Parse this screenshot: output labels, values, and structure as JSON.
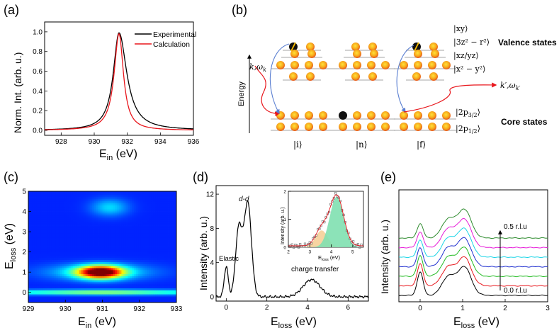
{
  "figure": {
    "panels": {
      "a": {
        "label": "(a)",
        "xlabel_main": "E",
        "xlabel_sub": "in",
        "xlabel_unit": " (eV)",
        "ylabel": "Norm. Int. (arb. u.)",
        "legend": [
          "Experimental",
          "Calculation"
        ],
        "colors": {
          "experimental": "#000000",
          "calculation": "#e8151b"
        }
      },
      "b": {
        "label": "(b)",
        "energy_label": "Energy",
        "in_photon": "k,ω",
        "in_photon_sub": "k",
        "out_photon": "k′,ω",
        "out_photon_sub": "k′",
        "valence_title": "Valence states",
        "core_title": "Core states",
        "orbitals": [
          "|xy⟩",
          "|3z² − r²⟩",
          "|xz/yz⟩",
          "|x² − y²⟩"
        ],
        "core_orbitals": [
          "|2p",
          "3/2",
          "⟩",
          "|2p",
          "1/2",
          "⟩"
        ],
        "states": [
          "|i⟩",
          "|n⟩",
          "|f⟩"
        ]
      },
      "c": {
        "label": "(c)",
        "xlabel_main": "E",
        "xlabel_sub": "in",
        "xlabel_unit": " (eV)",
        "ylabel_main": "E",
        "ylabel_sub": "loss",
        "ylabel_unit": " (eV)"
      },
      "d": {
        "label": "(d)",
        "ylabel": "Intensity (arb. u.)",
        "xlabel_main": "E",
        "xlabel_sub": "loss",
        "xlabel_unit": " (eV)",
        "annotations": {
          "elastic": "Elastic",
          "dd": "d-d",
          "ct": "charge transfer"
        },
        "inset": {
          "ylabel": "Intensity (arb. u.)",
          "xlabel_main": "E",
          "xlabel_sub": "loss",
          "xlabel_unit": " (eV)"
        }
      },
      "e": {
        "label": "(e)",
        "ylabel": "Intensity (arb. u.)",
        "xlabel_main": "E",
        "xlabel_sub": "loss",
        "xlabel_unit": " (eV)",
        "q_start": "0.0 r.l.u",
        "q_end": "0.5 r.l.u",
        "colors": [
          "#000000",
          "#e8151b",
          "#22bb22",
          "#1f2fcf",
          "#18d4e6",
          "#e61bd8",
          "#2e8b2e"
        ]
      }
    }
  },
  "chart_data": [
    {
      "panel": "a",
      "type": "line",
      "xlim": [
        927,
        936
      ],
      "ylim": [
        -0.05,
        1.1
      ],
      "xticks": [
        928,
        930,
        932,
        934,
        936
      ],
      "yticks": [
        0.0,
        0.2,
        0.4,
        0.6,
        0.8,
        1.0
      ],
      "series": [
        {
          "name": "Experimental",
          "peak_x": 931.5,
          "peak_y": 0.99,
          "width": 0.42
        },
        {
          "name": "Calculation",
          "peak_x": 931.5,
          "peak_y": 0.98,
          "width": 0.36
        }
      ]
    },
    {
      "panel": "c",
      "type": "heatmap",
      "xlim": [
        929,
        933
      ],
      "ylim": [
        -0.5,
        5
      ],
      "xticks": [
        929,
        930,
        931,
        932,
        933
      ],
      "yticks": [
        0,
        1,
        2,
        3,
        4,
        5
      ],
      "features": [
        {
          "name": "elastic",
          "x": 931.0,
          "y": 0.0,
          "intensity": 0.35
        },
        {
          "name": "dd",
          "x": 930.95,
          "y": 1.0,
          "intensity": 1.0
        },
        {
          "name": "charge transfer",
          "x": 931.2,
          "y": 4.2,
          "intensity": 0.3
        }
      ]
    },
    {
      "panel": "d",
      "type": "line",
      "xlim": [
        -0.5,
        7
      ],
      "ylim": [
        -0.5,
        13
      ],
      "xticks": [
        0,
        2,
        4,
        6
      ],
      "yticks": [
        0,
        4,
        8,
        12
      ],
      "peaks": [
        {
          "name": "Elastic",
          "x": 0.0,
          "y": 3.5
        },
        {
          "name": "d-d shoulder",
          "x": 0.65,
          "y": 8.0
        },
        {
          "name": "d-d",
          "x": 1.05,
          "y": 11.3
        },
        {
          "name": "charge transfer",
          "x": 4.2,
          "y": 2.0
        }
      ],
      "inset": {
        "xlim": [
          2,
          5.5
        ],
        "ylim": [
          0,
          2
        ],
        "xticks": [
          2,
          3,
          4,
          5
        ],
        "yticks": [
          0,
          1,
          2
        ],
        "peak_x": 4.2,
        "peak_y": 1.85
      }
    },
    {
      "panel": "e",
      "type": "line",
      "xlim": [
        -0.5,
        3
      ],
      "xticks": [
        0,
        1,
        2,
        3
      ],
      "series_count": 7,
      "q_range": [
        "0.0 r.l.u",
        "0.5 r.l.u"
      ]
    }
  ]
}
